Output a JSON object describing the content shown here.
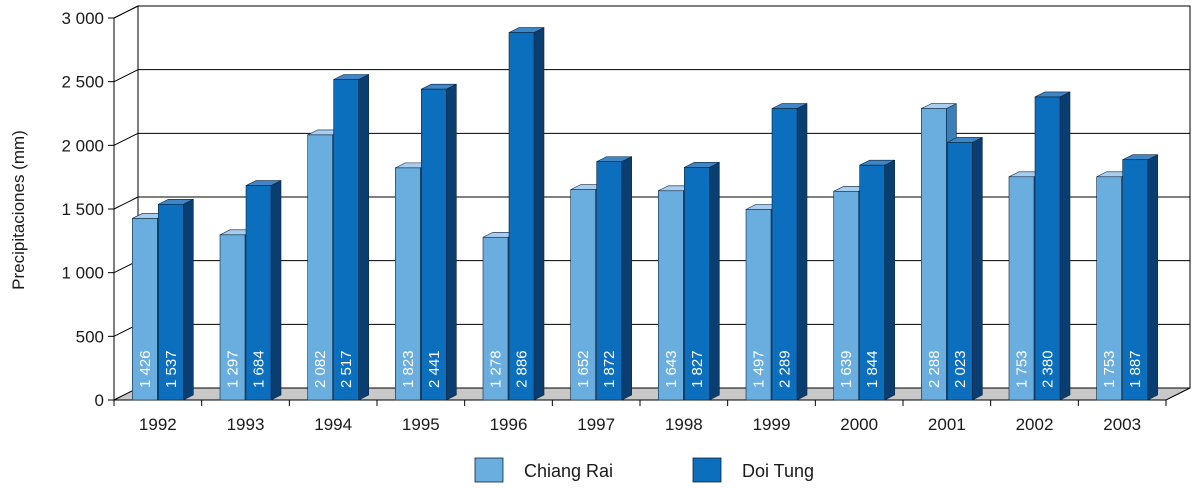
{
  "chart_data": {
    "type": "bar",
    "categories": [
      "1992",
      "1993",
      "1994",
      "1995",
      "1996",
      "1997",
      "1998",
      "1999",
      "2000",
      "2001",
      "2002",
      "2003"
    ],
    "series": [
      {
        "name": "Chiang Rai",
        "values": [
          1426,
          1297,
          2082,
          1823,
          1278,
          1652,
          1643,
          1497,
          1639,
          2288,
          1753,
          1753
        ],
        "labels": [
          "1 426",
          "1 297",
          "2 082",
          "1 823",
          "1 278",
          "1 652",
          "1 643",
          "1 497",
          "1 639",
          "2 288",
          "1 753",
          "1 753"
        ]
      },
      {
        "name": "Doi Tung",
        "values": [
          1537,
          1684,
          2517,
          2441,
          2886,
          1872,
          1827,
          2289,
          1844,
          2023,
          2380,
          1887
        ],
        "labels": [
          "1 537",
          "1 684",
          "2 517",
          "2 441",
          "2 886",
          "1 872",
          "1 827",
          "2 289",
          "1 844",
          "2 023",
          "2 380",
          "1 887"
        ]
      }
    ],
    "ylabel": "Precipitaciones (mm)",
    "ylim": [
      0,
      3000
    ],
    "yticks": [
      0,
      500,
      1000,
      1500,
      2000,
      2500,
      3000
    ],
    "ytick_labels": [
      "0",
      "500",
      "1 000",
      "1 500",
      "2 000",
      "2 500",
      "3 000"
    ],
    "grid": true,
    "legend": "bottom",
    "three_d": true
  },
  "colors": {
    "chiang_rai_front": "#6aaee0",
    "chiang_rai_side": "#3b7fb8",
    "chiang_rai_top": "#a9cdee",
    "doi_tung_front": "#0b6fbd",
    "doi_tung_side": "#0a3e70",
    "doi_tung_top": "#3e86c6",
    "floor": "#c8c8c8",
    "grid": "#000000"
  }
}
